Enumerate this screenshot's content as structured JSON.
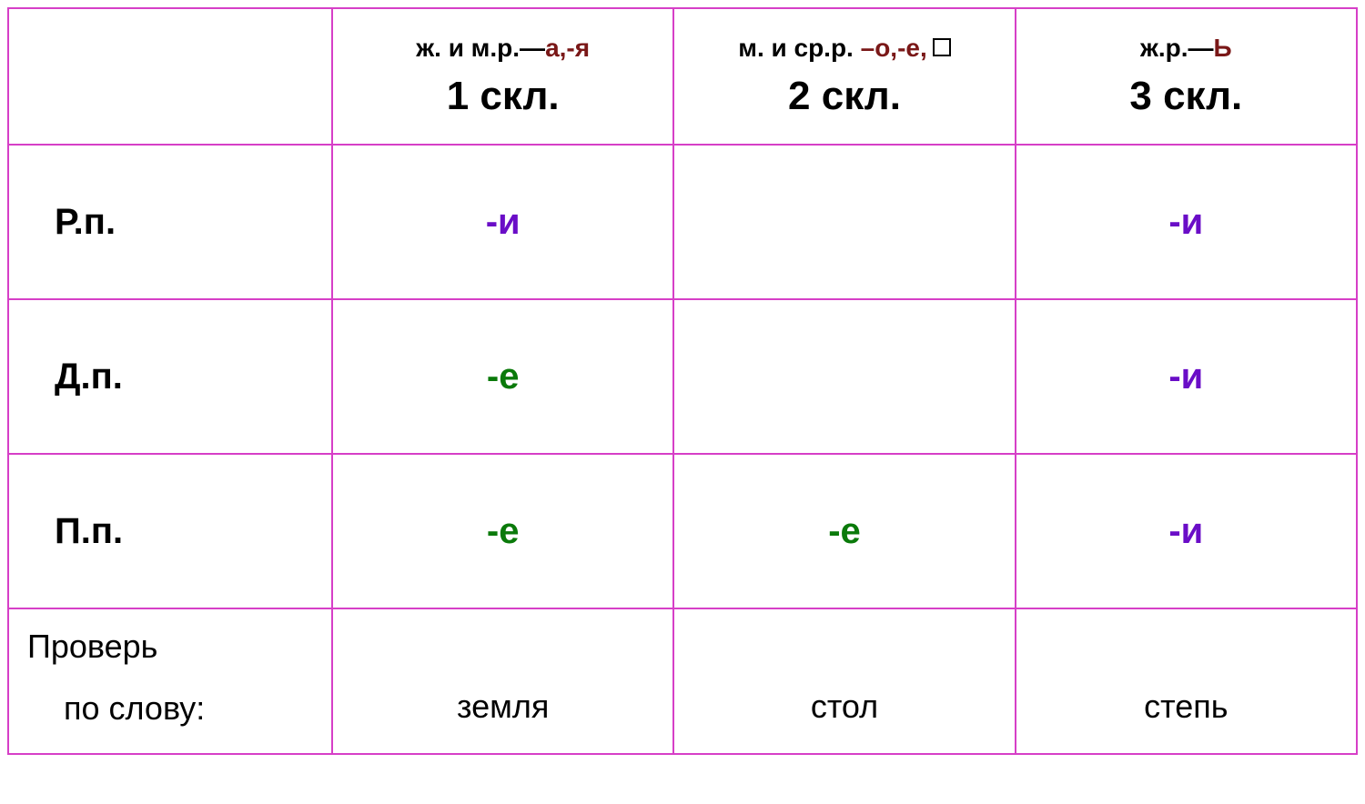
{
  "table": {
    "border_color": "#d63fc7",
    "bg_color": "#ffffff",
    "text_color": "#000000",
    "accent_color": "#7a1818",
    "ending_colors": {
      "и": "#6a0dc7",
      "е": "#0a7a0a"
    },
    "header": {
      "col1": {
        "line1_black": "ж. и м.р.—",
        "line1_accent": "а,-я",
        "line2": "1 скл."
      },
      "col2": {
        "line1_black": "м. и ср.р. ",
        "line1_accent": "–о,-е,",
        "has_zero_box": true,
        "line2": "2 скл."
      },
      "col3": {
        "line1_black": "ж.р.—",
        "line1_accent": "Ь",
        "line2": "3 скл."
      }
    },
    "rows": [
      {
        "label": "Р.п.",
        "c1": "-и",
        "c2": "",
        "c3": "-и"
      },
      {
        "label": "Д.п.",
        "c1": "-е",
        "c2": "",
        "c3": "-и"
      },
      {
        "label": "П.п.",
        "c1": "-е",
        "c2": "-е",
        "c3": "-и"
      }
    ],
    "check": {
      "line1": "Проверь",
      "line2": "по слову:",
      "c1": "земля",
      "c2": "стол",
      "c3": "степь"
    }
  }
}
